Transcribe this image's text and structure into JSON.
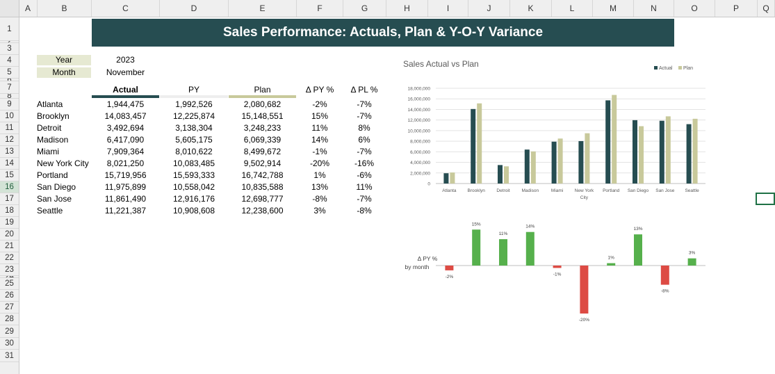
{
  "spreadsheet": {
    "columns": [
      "A",
      "B",
      "C",
      "D",
      "E",
      "F",
      "G",
      "H",
      "I",
      "J",
      "K",
      "L",
      "M",
      "N",
      "O",
      "P",
      "Q"
    ],
    "rows": [
      "1",
      "2",
      "3",
      "4",
      "5",
      "6",
      "7",
      "8",
      "9",
      "10",
      "11",
      "12",
      "13",
      "14",
      "15",
      "16",
      "17",
      "18",
      "19",
      "20",
      "21",
      "22",
      "23",
      "24",
      "25",
      "26",
      "27",
      "28",
      "29",
      "30",
      "31"
    ],
    "selected_row": "16"
  },
  "title": "Sales Performance: Actuals, Plan & Y-O-Y Variance",
  "filters": {
    "year_label": "Year",
    "year_value": "2023",
    "month_label": "Month",
    "month_value": "November"
  },
  "table": {
    "headers": {
      "actual": "Actual",
      "py": "PY",
      "plan": "Plan",
      "dpy": "Δ PY %",
      "dpl": "Δ PL %"
    },
    "rows": [
      {
        "city": "Atlanta",
        "actual": "1,944,475",
        "py": "1,992,526",
        "plan": "2,080,682",
        "dpy": "-2%",
        "dpl": "-7%"
      },
      {
        "city": "Brooklyn",
        "actual": "14,083,457",
        "py": "12,225,874",
        "plan": "15,148,551",
        "dpy": "15%",
        "dpl": "-7%"
      },
      {
        "city": "Detroit",
        "actual": "3,492,694",
        "py": "3,138,304",
        "plan": "3,248,233",
        "dpy": "11%",
        "dpl": "8%"
      },
      {
        "city": "Madison",
        "actual": "6,417,090",
        "py": "5,605,175",
        "plan": "6,069,339",
        "dpy": "14%",
        "dpl": "6%"
      },
      {
        "city": "Miami",
        "actual": "7,909,364",
        "py": "8,010,622",
        "plan": "8,499,672",
        "dpy": "-1%",
        "dpl": "-7%"
      },
      {
        "city": "New York City",
        "actual": "8,021,250",
        "py": "10,083,485",
        "plan": "9,502,914",
        "dpy": "-20%",
        "dpl": "-16%"
      },
      {
        "city": "Portland",
        "actual": "15,719,956",
        "py": "15,593,333",
        "plan": "16,742,788",
        "dpy": "1%",
        "dpl": "-6%"
      },
      {
        "city": "San Diego",
        "actual": "11,975,899",
        "py": "10,558,042",
        "plan": "10,835,588",
        "dpy": "13%",
        "dpl": "11%"
      },
      {
        "city": "San Jose",
        "actual": "11,861,490",
        "py": "12,916,176",
        "plan": "12,698,777",
        "dpy": "-8%",
        "dpl": "-7%"
      },
      {
        "city": "Seattle",
        "actual": "11,221,387",
        "py": "10,908,608",
        "plan": "12,238,600",
        "dpy": "3%",
        "dpl": "-8%"
      }
    ]
  },
  "colors": {
    "actual": "#264d51",
    "plan": "#c8c99b",
    "py_bar": "#f0f0f0",
    "positive": "#56b04c",
    "negative": "#dd4b44"
  },
  "chart_data": [
    {
      "type": "bar",
      "title": "Sales Actual vs Plan",
      "categories": [
        "Atlanta",
        "Brooklyn",
        "Detroit",
        "Madison",
        "Miami",
        "New York City",
        "Portland",
        "San Diego",
        "San Jose",
        "Seattle"
      ],
      "category_labels": [
        [
          "Atlanta"
        ],
        [
          "Brooklyn"
        ],
        [
          "Detroit"
        ],
        [
          "Madison"
        ],
        [
          "Miami"
        ],
        [
          "New York",
          "City"
        ],
        [
          "Portland"
        ],
        [
          "San Diego"
        ],
        [
          "San Jose"
        ],
        [
          "Seattle"
        ]
      ],
      "series": [
        {
          "name": "Actual",
          "values": [
            1944475,
            14083457,
            3492694,
            6417090,
            7909364,
            8021250,
            15719956,
            11975899,
            11861490,
            11221387
          ]
        },
        {
          "name": "Plan",
          "values": [
            2080682,
            15148551,
            3248233,
            6069339,
            8499672,
            9502914,
            16742788,
            10835588,
            12698777,
            12238600
          ]
        }
      ],
      "ylim": [
        0,
        18000000
      ],
      "yticks": [
        "0",
        "2,000,000",
        "4,000,000",
        "6,000,000",
        "8,000,000",
        "10,000,000",
        "12,000,000",
        "14,000,000",
        "16,000,000",
        "18,000,000"
      ],
      "grid": true,
      "legend": "top-right"
    },
    {
      "type": "bar",
      "title": "",
      "ylabel_lines": [
        "Δ PY %",
        "by month"
      ],
      "categories": [
        "Atlanta",
        "Brooklyn",
        "Detroit",
        "Madison",
        "Miami",
        "New York City",
        "Portland",
        "San Diego",
        "San Jose",
        "Seattle"
      ],
      "values": [
        -2,
        15,
        11,
        14,
        -1,
        -20,
        1,
        13,
        -8,
        3
      ],
      "labels": [
        "-2%",
        "15%",
        "11%",
        "14%",
        "-1%",
        "-20%",
        "1%",
        "13%",
        "-8%",
        "3%"
      ],
      "ylim": [
        -20,
        15
      ],
      "grid": false
    }
  ]
}
